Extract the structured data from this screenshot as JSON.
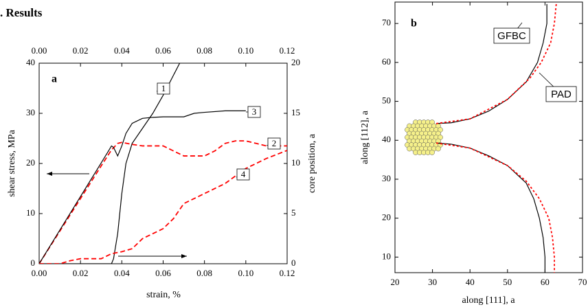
{
  "section_title": ". Results",
  "chart_data": [
    {
      "type": "line",
      "panel_label": "a",
      "xlabel": "strain, %",
      "ylabel": "shear stress, MPa",
      "y2label": "core position, a",
      "xlim": [
        0,
        0.12
      ],
      "xticks": [
        {
          "value": 0,
          "label": "0.00"
        },
        {
          "value": 0.02,
          "label": "0.02"
        },
        {
          "value": 0.04,
          "label": "0.04"
        },
        {
          "value": 0.06,
          "label": "0.06"
        },
        {
          "value": 0.08,
          "label": "0.08"
        },
        {
          "value": 0.1,
          "label": "0.10"
        },
        {
          "value": 0.12,
          "label": "0.12"
        }
      ],
      "ylim": [
        0,
        40
      ],
      "yticks": [
        0,
        10,
        20,
        30,
        40
      ],
      "y2lim": [
        0,
        20
      ],
      "y2ticks": [
        0,
        5,
        10,
        15,
        20
      ],
      "series": [
        {
          "name": "1",
          "color": "#000000",
          "dash": "solid",
          "axis": "y2",
          "x": [
            0,
            0.01,
            0.02,
            0.03,
            0.035,
            0.036,
            0.038,
            0.04,
            0.042,
            0.045,
            0.05,
            0.055,
            0.06,
            0.065,
            0.068
          ],
          "values": [
            0,
            0,
            0,
            0,
            0,
            0.5,
            3,
            7,
            10,
            12,
            13.5,
            15,
            16.8,
            18.8,
            20
          ]
        },
        {
          "name": "2",
          "color": "#ff0000",
          "dash": "dashed",
          "x": [
            0,
            0.01,
            0.02,
            0.03,
            0.035,
            0.038,
            0.04,
            0.045,
            0.05,
            0.06,
            0.065,
            0.07,
            0.08,
            0.085,
            0.09,
            0.095,
            0.1,
            0.105,
            0.11,
            0.12
          ],
          "values": [
            0,
            6.5,
            13,
            19.5,
            22.7,
            24,
            24.2,
            23.8,
            23.5,
            23.5,
            22.5,
            21.5,
            21.5,
            22.5,
            24,
            24.5,
            24.5,
            24,
            23.5,
            23.5
          ]
        },
        {
          "name": "3",
          "color": "#000000",
          "dash": "solid",
          "x": [
            0,
            0.01,
            0.02,
            0.03,
            0.034,
            0.035,
            0.036,
            0.038,
            0.04,
            0.042,
            0.045,
            0.05,
            0.055,
            0.06,
            0.07,
            0.075,
            0.08,
            0.09,
            0.1
          ],
          "values": [
            0,
            6.7,
            13.4,
            20.1,
            22.8,
            23.5,
            23.2,
            21.5,
            23.5,
            26,
            28,
            29,
            29.2,
            29.3,
            29.3,
            30,
            30.2,
            30.5,
            30.5
          ]
        },
        {
          "name": "4",
          "color": "#ff0000",
          "dash": "dashed",
          "axis": "y2",
          "x": [
            0,
            0.01,
            0.015,
            0.02,
            0.03,
            0.035,
            0.04,
            0.045,
            0.05,
            0.06,
            0.065,
            0.07,
            0.08,
            0.09,
            0.1,
            0.11,
            0.12
          ],
          "values": [
            0,
            0,
            0.3,
            0.5,
            0.5,
            1,
            1.2,
            1.5,
            2.5,
            3.5,
            4.5,
            6,
            7,
            8,
            9.5,
            10.5,
            11.3
          ]
        }
      ]
    },
    {
      "type": "line",
      "panel_label": "b",
      "xlabel": "along [111], a",
      "ylabel": "along [112], a",
      "xlim": [
        20,
        70
      ],
      "xticks": [
        20,
        30,
        40,
        50,
        60,
        70
      ],
      "ylim": [
        6,
        75.5
      ],
      "yticks": [
        10,
        20,
        30,
        40,
        50,
        60,
        70
      ],
      "series": [
        {
          "name": "GFBC",
          "color": "#000000",
          "dash": "solid",
          "x": [
            31,
            35,
            40,
            45,
            50,
            55,
            58,
            59.5,
            60.5,
            60.5,
            null,
            31,
            35,
            40,
            45,
            50,
            55,
            57,
            58.5,
            59.5,
            60,
            60
          ],
          "values": [
            44.3,
            44.5,
            45.5,
            47.5,
            50.5,
            55,
            60,
            65,
            70,
            75,
            null,
            39.3,
            39,
            38,
            36,
            33.5,
            29,
            25,
            20,
            15,
            10,
            6
          ]
        },
        {
          "name": "PAD",
          "color": "#ff0000",
          "dash": "dotted",
          "x": [
            31,
            40,
            50,
            56,
            59,
            61.5,
            62.5,
            63,
            null,
            31,
            40,
            50,
            55,
            58.5,
            61,
            62,
            62.5,
            62.5
          ],
          "values": [
            44.3,
            45.5,
            50.5,
            56,
            60,
            65,
            70,
            75,
            null,
            39.3,
            38,
            33.5,
            29.5,
            25,
            20,
            15,
            10,
            6
          ]
        }
      ]
    }
  ]
}
